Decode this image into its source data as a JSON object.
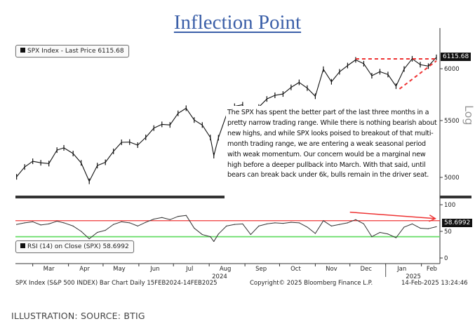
{
  "title": "Inflection Point",
  "price_legend": "SPX Index - Last Price 6115.68",
  "rsi_legend": "RSI (14)  on Close (SPX) 58.6992",
  "last_price_tag": "6115.68",
  "rsi_tag": "58.6992",
  "scale_label": "Log",
  "annotation": "The SPX has spent the better part of the last three months in a pretty narrow trading range. While there is nothing bearish about new highs, and while SPX looks poised to breakout of that multi-month trading range, we are entering a weak seasonal period with weak momentum. Our concern would be a marginal new high before a deeper pullback into March. With that said, until bears can break back under 6k, bulls remain in the driver seat.",
  "footer": {
    "left": "SPX Index (S&P 500 INDEX) Bar Chart  Daily 15FEB2024-14FEB2025",
    "middle": "Copyright© 2025 Bloomberg Finance L.P.",
    "right": "14-Feb-2025 13:24:46"
  },
  "caption": "ILLUSTRATION: SOURCE: BTIG",
  "colors": {
    "title": "#3b5fa8",
    "price": "#111111",
    "trendline": "#ee3333",
    "overbought": "#ee2222",
    "oversold": "#66dd66"
  },
  "chart_data": [
    {
      "type": "line",
      "series_label": "SPX Index - Last Price",
      "yscale": "log",
      "ylim": [
        4850,
        6250
      ],
      "yticks": [
        5000,
        5500,
        6000
      ],
      "x_range": [
        "2024-02-15",
        "2025-02-14"
      ],
      "xticks": [
        {
          "label": "Mar",
          "date": "2024-03-15"
        },
        {
          "label": "Apr",
          "date": "2024-04-15"
        },
        {
          "label": "May",
          "date": "2024-05-15"
        },
        {
          "label": "Jun",
          "date": "2024-06-15"
        },
        {
          "label": "Jul",
          "date": "2024-07-15"
        },
        {
          "label": "Aug",
          "date": "2024-08-15"
        },
        {
          "label": "Sep",
          "date": "2024-09-15"
        },
        {
          "label": "Oct",
          "date": "2024-10-15"
        },
        {
          "label": "Nov",
          "date": "2024-11-15"
        },
        {
          "label": "Dec",
          "date": "2024-12-15"
        },
        {
          "label": "Jan",
          "date": "2025-01-15"
        },
        {
          "label": "Feb",
          "date": "2025-02-10"
        }
      ],
      "year_labels": [
        {
          "label": "2024",
          "date": "2024-08-10"
        },
        {
          "label": "2025",
          "date": "2025-01-25"
        }
      ],
      "x": [
        "2024-02-16",
        "2024-02-23",
        "2024-03-01",
        "2024-03-08",
        "2024-03-15",
        "2024-03-22",
        "2024-03-28",
        "2024-04-05",
        "2024-04-12",
        "2024-04-19",
        "2024-04-26",
        "2024-05-03",
        "2024-05-10",
        "2024-05-17",
        "2024-05-24",
        "2024-05-31",
        "2024-06-07",
        "2024-06-14",
        "2024-06-21",
        "2024-06-28",
        "2024-07-05",
        "2024-07-12",
        "2024-07-19",
        "2024-07-26",
        "2024-08-02",
        "2024-08-05",
        "2024-08-09",
        "2024-08-16",
        "2024-08-23",
        "2024-08-30",
        "2024-09-06",
        "2024-09-13",
        "2024-09-20",
        "2024-09-27",
        "2024-10-04",
        "2024-10-11",
        "2024-10-18",
        "2024-10-25",
        "2024-11-01",
        "2024-11-08",
        "2024-11-15",
        "2024-11-22",
        "2024-11-29",
        "2024-12-06",
        "2024-12-13",
        "2024-12-20",
        "2024-12-27",
        "2025-01-03",
        "2025-01-10",
        "2025-01-17",
        "2025-01-24",
        "2025-01-31",
        "2025-02-07",
        "2025-02-14"
      ],
      "values": [
        5005,
        5088,
        5137,
        5124,
        5117,
        5234,
        5254,
        5204,
        5123,
        4967,
        5100,
        5128,
        5223,
        5303,
        5305,
        5278,
        5347,
        5431,
        5465,
        5460,
        5567,
        5615,
        5505,
        5459,
        5346,
        5186,
        5344,
        5554,
        5634,
        5648,
        5408,
        5626,
        5703,
        5738,
        5751,
        5815,
        5864,
        5808,
        5729,
        5995,
        5870,
        5969,
        6032,
        6090,
        6051,
        5930,
        5970,
        5942,
        5827,
        5997,
        6101,
        6041,
        6026,
        6115.68
      ],
      "trendlines": [
        {
          "from": [
            "2024-12-06",
            6100
          ],
          "to": [
            "2025-02-14",
            6100
          ],
          "style": "dashed"
        },
        {
          "from": [
            "2025-01-13",
            5800
          ],
          "to": [
            "2025-02-14",
            6080
          ],
          "style": "dashed"
        }
      ]
    },
    {
      "type": "line",
      "series_label": "RSI (14) on Close (SPX)",
      "ylim": [
        0,
        100
      ],
      "yticks": [
        0,
        50,
        100
      ],
      "levels": [
        70,
        40
      ],
      "x": [
        "2024-02-16",
        "2024-02-23",
        "2024-03-01",
        "2024-03-08",
        "2024-03-15",
        "2024-03-22",
        "2024-03-28",
        "2024-04-05",
        "2024-04-12",
        "2024-04-19",
        "2024-04-26",
        "2024-05-03",
        "2024-05-10",
        "2024-05-17",
        "2024-05-24",
        "2024-05-31",
        "2024-06-07",
        "2024-06-14",
        "2024-06-21",
        "2024-06-28",
        "2024-07-05",
        "2024-07-12",
        "2024-07-19",
        "2024-07-26",
        "2024-08-02",
        "2024-08-05",
        "2024-08-09",
        "2024-08-16",
        "2024-08-23",
        "2024-08-30",
        "2024-09-06",
        "2024-09-13",
        "2024-09-20",
        "2024-09-27",
        "2024-10-04",
        "2024-10-11",
        "2024-10-18",
        "2024-10-25",
        "2024-11-01",
        "2024-11-08",
        "2024-11-15",
        "2024-11-22",
        "2024-11-29",
        "2024-12-06",
        "2024-12-13",
        "2024-12-20",
        "2024-12-27",
        "2025-01-03",
        "2025-01-10",
        "2025-01-17",
        "2025-01-24",
        "2025-01-31",
        "2025-02-07",
        "2025-02-14"
      ],
      "values": [
        63,
        66,
        68,
        62,
        64,
        69,
        66,
        60,
        50,
        36,
        48,
        52,
        63,
        68,
        66,
        60,
        67,
        73,
        76,
        72,
        78,
        80,
        56,
        44,
        40,
        31,
        45,
        60,
        63,
        64,
        44,
        60,
        64,
        66,
        65,
        67,
        66,
        58,
        46,
        70,
        60,
        63,
        66,
        72,
        64,
        40,
        48,
        45,
        38,
        58,
        64,
        56,
        55,
        58.6992
      ],
      "arrow": {
        "from": [
          "2024-12-01",
          86
        ],
        "to": [
          "2025-02-13",
          74
        ]
      }
    }
  ]
}
